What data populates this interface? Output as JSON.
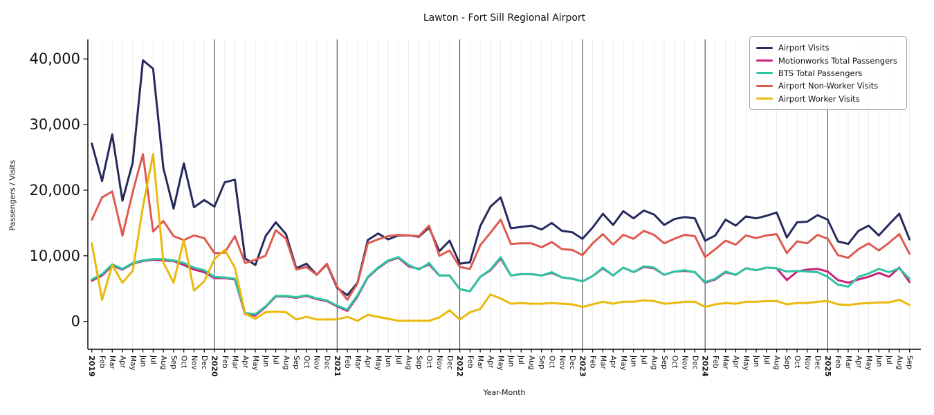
{
  "title": "Lawton - Fort Sill Regional Airport",
  "chart_data": {
    "type": "line",
    "title": "Lawton - Fort Sill Regional Airport",
    "xlabel": "Year-Month",
    "ylabel": "Passengers / Visits",
    "ylim": [
      0,
      40000
    ],
    "grid": "vertical gridlines at every month, dark separator line at each January (year boundary), no horizontal gridlines",
    "legend_position": "upper right",
    "y_ticks": [
      {
        "value": 0,
        "label": "0"
      },
      {
        "value": 10000,
        "label": "10,000"
      },
      {
        "value": 20000,
        "label": "20,000"
      },
      {
        "value": 30000,
        "label": "30,000"
      },
      {
        "value": 40000,
        "label": "40,000"
      }
    ],
    "x_labels": [
      "2019",
      "Feb",
      "Mar",
      "Apr",
      "May",
      "Jun",
      "Jul",
      "Aug",
      "Sep",
      "Oct",
      "Nov",
      "Dec",
      "2020",
      "Feb",
      "Mar",
      "Apr",
      "May",
      "Jun",
      "Jul",
      "Aug",
      "Sep",
      "Oct",
      "Nov",
      "Dec",
      "2021",
      "Feb",
      "Mar",
      "Apr",
      "May",
      "Jun",
      "Jul",
      "Aug",
      "Sep",
      "Oct",
      "Nov",
      "Dec",
      "2022",
      "Feb",
      "Mar",
      "Apr",
      "May",
      "Jun",
      "Jul",
      "Aug",
      "Sep",
      "Oct",
      "Nov",
      "Dec",
      "2023",
      "Feb",
      "Mar",
      "Apr",
      "May",
      "Jun",
      "Jul",
      "Aug",
      "Sep",
      "Oct",
      "Nov",
      "Dec",
      "2024",
      "Feb",
      "Mar",
      "Apr",
      "May",
      "Jun",
      "Jul",
      "Aug",
      "Sep",
      "Oct",
      "Nov",
      "Dec",
      "2025",
      "Feb",
      "Mar",
      "Apr",
      "May",
      "Jun",
      "Jul",
      "Aug",
      "Sep"
    ],
    "series": [
      {
        "name": "Airport Visits",
        "color": "#252a5c",
        "values": [
          27100,
          21400,
          28500,
          18400,
          24200,
          39800,
          38500,
          23400,
          17200,
          24100,
          17400,
          18500,
          17500,
          21200,
          21600,
          9600,
          8600,
          13000,
          15100,
          13300,
          8100,
          8800,
          7100,
          8700,
          5100,
          4000,
          5900,
          12400,
          13400,
          12500,
          13100,
          13100,
          12900,
          14300,
          10700,
          12300,
          8800,
          9000,
          14500,
          17500,
          18900,
          14200,
          14400,
          14600,
          14000,
          15000,
          13800,
          13600,
          12600,
          14300,
          16400,
          14700,
          16800,
          15700,
          16900,
          16300,
          14700,
          15600,
          15900,
          15700,
          12300,
          13100,
          15500,
          14600,
          16000,
          15700,
          16100,
          16600,
          12800,
          15100,
          15200,
          16200,
          15500,
          12200,
          11800,
          13800,
          14600,
          13100,
          14800,
          16400,
          12500
        ]
      },
      {
        "name": "Motionworks Total Passengers",
        "color": "#c9207c",
        "values": [
          6200,
          7000,
          8500,
          7900,
          8800,
          9200,
          9400,
          9300,
          9200,
          8600,
          7900,
          7500,
          6600,
          6600,
          6400,
          1100,
          900,
          2200,
          3800,
          3800,
          3600,
          3900,
          3400,
          3100,
          2300,
          1600,
          3800,
          6700,
          8100,
          9200,
          9700,
          8400,
          8000,
          8700,
          7000,
          7000,
          4900,
          4600,
          6800,
          7800,
          9600,
          7000,
          7200,
          7200,
          7000,
          7400,
          6700,
          6500,
          6100,
          6900,
          8100,
          7000,
          8200,
          7500,
          8300,
          8100,
          7100,
          7600,
          7700,
          7500,
          5900,
          6400,
          7500,
          7100,
          8100,
          7800,
          8200,
          8100,
          6300,
          7600,
          7900,
          8000,
          7600,
          6300,
          5900,
          6400,
          6800,
          7400,
          6800,
          8200,
          6000
        ]
      },
      {
        "name": "BTS Total Passengers",
        "color": "#2dc5a2",
        "values": [
          6400,
          7200,
          8700,
          8000,
          8900,
          9300,
          9500,
          9500,
          9300,
          8900,
          8200,
          7800,
          6800,
          6700,
          6500,
          1300,
          1100,
          2300,
          3900,
          3900,
          3700,
          4000,
          3500,
          3200,
          2400,
          1800,
          4000,
          6800,
          8200,
          9300,
          9800,
          8600,
          7900,
          8900,
          7000,
          7000,
          4900,
          4600,
          6800,
          7900,
          9800,
          7000,
          7200,
          7200,
          7000,
          7500,
          6700,
          6500,
          6100,
          6900,
          8200,
          7000,
          8200,
          7500,
          8400,
          8200,
          7100,
          7600,
          7800,
          7500,
          6000,
          6500,
          7600,
          7100,
          8100,
          7800,
          8200,
          8100,
          7600,
          7700,
          7600,
          7500,
          6800,
          5600,
          5300,
          6800,
          7300,
          8000,
          7500,
          8100,
          6500
        ]
      },
      {
        "name": "Airport Non-Worker Visits",
        "color": "#de5a50",
        "values": [
          15500,
          18900,
          19800,
          13100,
          19700,
          25500,
          13700,
          15300,
          13000,
          12400,
          13100,
          12700,
          10400,
          10500,
          13000,
          8900,
          9400,
          10000,
          13900,
          12600,
          7900,
          8300,
          7100,
          8800,
          5300,
          3300,
          5800,
          11900,
          12500,
          13000,
          13200,
          13100,
          13000,
          14600,
          10000,
          10800,
          8300,
          8000,
          11600,
          13500,
          15500,
          11800,
          11900,
          11900,
          11300,
          12100,
          11000,
          10900,
          10100,
          11900,
          13300,
          11700,
          13200,
          12600,
          13800,
          13200,
          11900,
          12600,
          13200,
          13000,
          9800,
          11000,
          12300,
          11700,
          13100,
          12700,
          13100,
          13300,
          10400,
          12200,
          11900,
          13200,
          12600,
          10100,
          9700,
          11000,
          11900,
          10800,
          12000,
          13300,
          10300
        ]
      },
      {
        "name": "Airport Worker Visits",
        "color": "#e9b90c",
        "values": [
          11900,
          3300,
          8600,
          5900,
          7700,
          17500,
          25500,
          9000,
          5900,
          12400,
          4700,
          6100,
          9500,
          10900,
          8200,
          1200,
          400,
          1400,
          1500,
          1400,
          300,
          700,
          300,
          300,
          300,
          700,
          100,
          1000,
          700,
          400,
          100,
          100,
          100,
          100,
          600,
          1700,
          300,
          1400,
          1900,
          4100,
          3500,
          2700,
          2800,
          2700,
          2700,
          2800,
          2700,
          2600,
          2200,
          2600,
          3000,
          2700,
          3000,
          3000,
          3200,
          3100,
          2700,
          2800,
          3000,
          3000,
          2200,
          2600,
          2800,
          2700,
          3000,
          3000,
          3100,
          3100,
          2600,
          2800,
          2800,
          3000,
          3100,
          2600,
          2500,
          2700,
          2800,
          2900,
          2900,
          3300,
          2500
        ]
      }
    ]
  }
}
